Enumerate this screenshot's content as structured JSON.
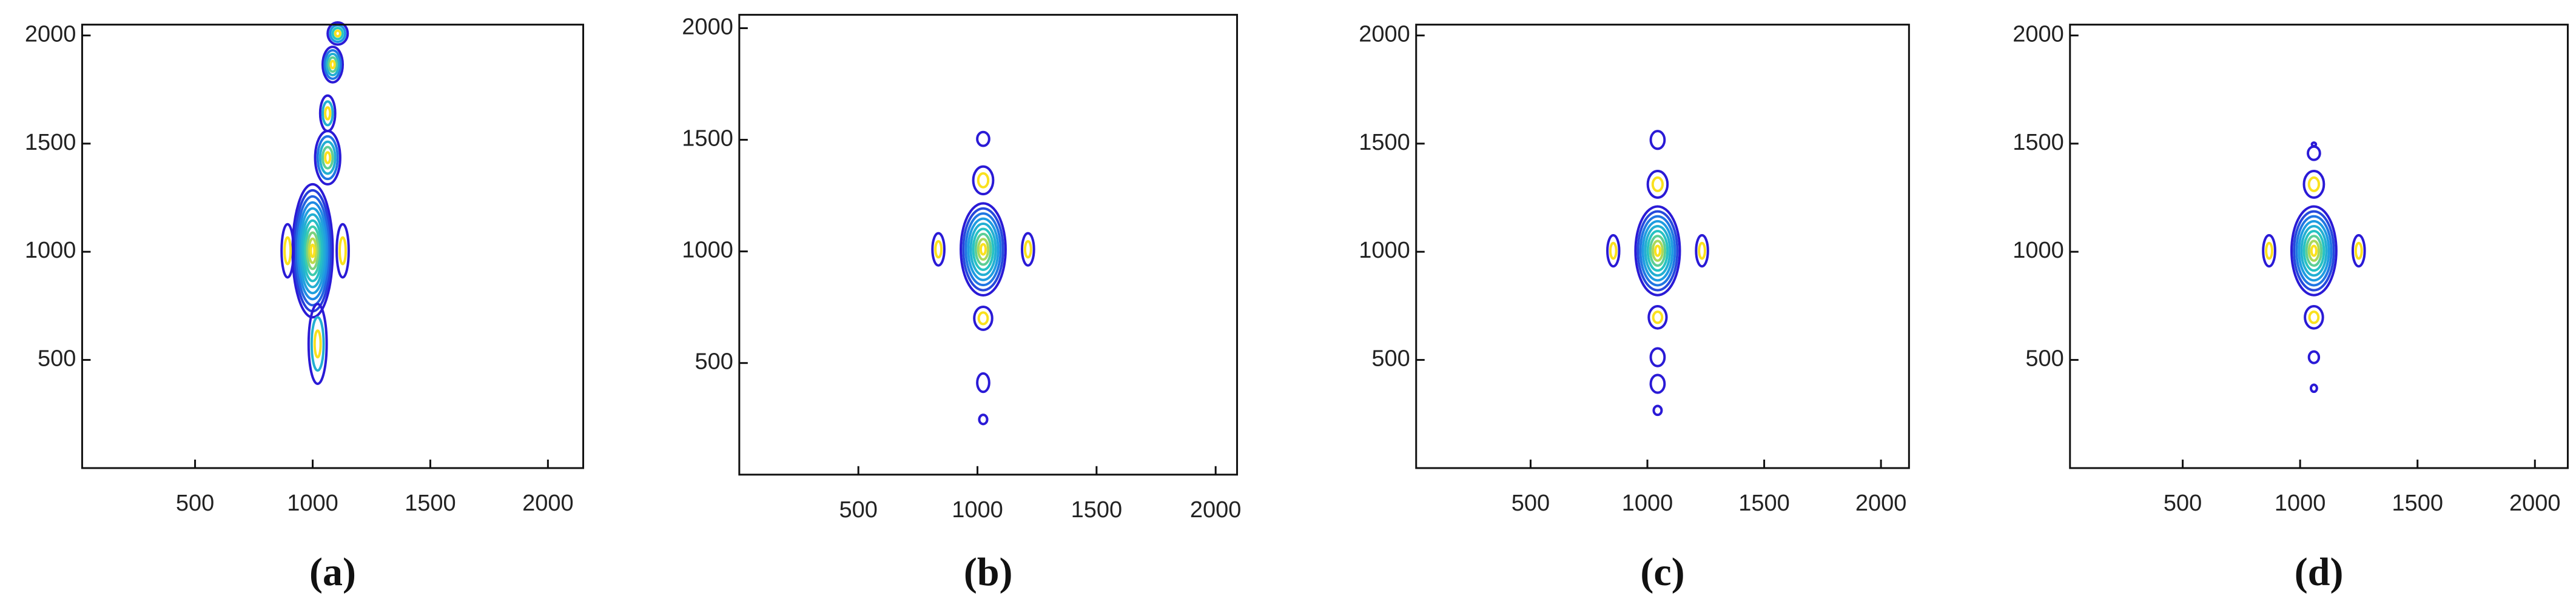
{
  "chart_data": [
    {
      "type": "contour",
      "caption": "(a)",
      "xlim": [
        20,
        2150
      ],
      "ylim": [
        0,
        2050
      ],
      "xticks": [
        500,
        1000,
        1500,
        2000
      ],
      "yticks": [
        500,
        1000,
        1500,
        2000
      ]
    },
    {
      "type": "contour",
      "caption": "(b)",
      "xlim": [
        0,
        2090
      ],
      "ylim": [
        0,
        2060
      ],
      "xticks": [
        500,
        1000,
        1500,
        2000
      ],
      "yticks": [
        500,
        1000,
        1500,
        2000
      ]
    },
    {
      "type": "contour",
      "caption": "(c)",
      "xlim": [
        10,
        2120
      ],
      "ylim": [
        0,
        2050
      ],
      "xticks": [
        500,
        1000,
        1500,
        2000
      ],
      "yticks": [
        500,
        1000,
        1500,
        2000
      ]
    },
    {
      "type": "contour",
      "caption": "(d)",
      "xlim": [
        20,
        2140
      ],
      "ylim": [
        0,
        2050
      ],
      "xticks": [
        500,
        1000,
        1500,
        2000
      ],
      "yticks": [
        500,
        1000,
        1500,
        2000
      ]
    }
  ]
}
